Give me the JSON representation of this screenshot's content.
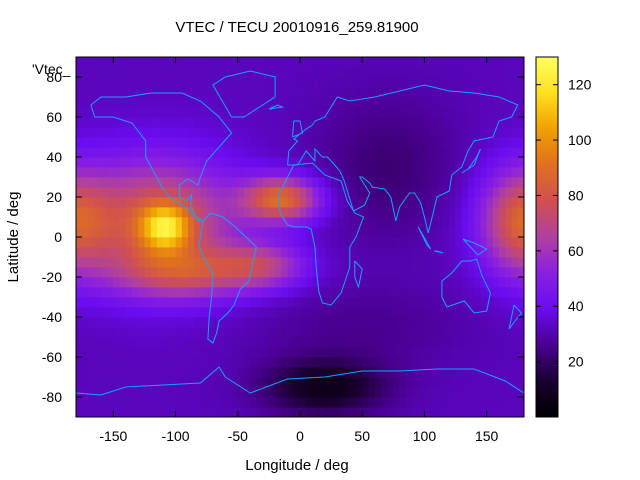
{
  "chart_data": {
    "type": "heatmap",
    "title": "VTEC / TECU 20010916_259.81900",
    "xlabel": "Longitude / deg",
    "ylabel": "Latitude / deg",
    "legend_label": "'Vtec_",
    "xlim": [
      -180,
      180
    ],
    "ylim": [
      -90,
      90
    ],
    "x_ticks": [
      -150,
      -100,
      -50,
      0,
      50,
      100,
      150
    ],
    "y_ticks": [
      -80,
      -60,
      -40,
      -20,
      0,
      20,
      40,
      60,
      80
    ],
    "colorbar": {
      "range": [
        0,
        130
      ],
      "ticks": [
        20,
        40,
        60,
        80,
        100,
        120
      ],
      "palette": [
        "#000000",
        "#1a0030",
        "#4a0090",
        "#6a0cf0",
        "#8a20e0",
        "#b040a0",
        "#d05050",
        "#e07020",
        "#f0a000",
        "#ffe020",
        "#ffff60"
      ]
    },
    "background_tecu": 32,
    "features": [
      {
        "name": "equatorial-anomaly-pacific-peak",
        "lon": -108,
        "lat": 5,
        "tecu": 125
      },
      {
        "name": "equatorial-anomaly-pacific-north",
        "lon": -125,
        "lat": 15,
        "tecu": 85
      },
      {
        "name": "equatorial-anomaly-pacific-south",
        "lon": -105,
        "lat": -15,
        "tecu": 80
      },
      {
        "name": "atlantic-north-crest",
        "lon": -15,
        "lat": 18,
        "tecu": 100
      },
      {
        "name": "atlantic-south-crest",
        "lon": -35,
        "lat": -12,
        "tecu": 80
      },
      {
        "name": "west-pacific-edge",
        "lon": 175,
        "lat": 5,
        "tecu": 85
      },
      {
        "name": "antarctic-minimum",
        "lon": 20,
        "lat": -75,
        "tecu": 2
      }
    ]
  }
}
